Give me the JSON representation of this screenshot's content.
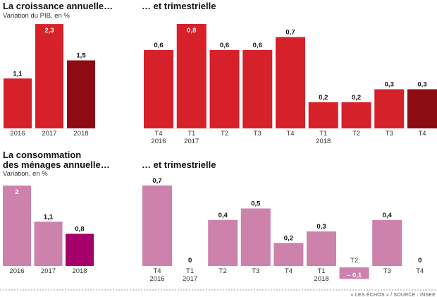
{
  "panels": {
    "gdp_annual": {
      "title": "La croissance annuelle…",
      "subtitle": "Variation du PIB, en %"
    },
    "gdp_quarterly": {
      "title": "… et trimestrielle"
    },
    "cons_annual": {
      "title_line1": "La consommation",
      "title_line2": "des ménages annuelle…",
      "subtitle": "Variation, en %"
    },
    "cons_quarterly": {
      "title": "… et trimestrielle"
    }
  },
  "source": "« LES ÉCHOS » / SOURCE : INSEE",
  "colors": {
    "gdp": "#d6202a",
    "gdp_highlight": "#8d0c14",
    "cons": "#cc82ab",
    "cons_highlight": "#a5006a",
    "rule": "#9a9a9a"
  },
  "chart_data": [
    {
      "id": "gdp_annual",
      "type": "bar",
      "categories": [
        "2016",
        "2017",
        "2018"
      ],
      "values": [
        1.1,
        2.3,
        1.5
      ],
      "labels": [
        "1,1",
        "2,3",
        "1,5"
      ],
      "highlight": [
        false,
        false,
        true
      ],
      "title": "La croissance annuelle…",
      "ylabel": "Variation du PIB, en %"
    },
    {
      "id": "gdp_quarterly",
      "type": "bar",
      "categories": [
        [
          "T4",
          "2016"
        ],
        [
          "T1",
          "2017"
        ],
        [
          "T2",
          ""
        ],
        [
          "T3",
          ""
        ],
        [
          "T4",
          ""
        ],
        [
          "T1",
          "2018"
        ],
        [
          "T2",
          ""
        ],
        [
          "T3",
          ""
        ],
        [
          "T4",
          ""
        ]
      ],
      "values": [
        0.6,
        0.8,
        0.6,
        0.6,
        0.7,
        0.2,
        0.2,
        0.3,
        0.3
      ],
      "labels": [
        "0,6",
        "0,8",
        "0,6",
        "0,6",
        "0,7",
        "0,2",
        "0,2",
        "0,3",
        "0,3"
      ],
      "highlight": [
        false,
        false,
        false,
        false,
        false,
        false,
        false,
        false,
        true
      ],
      "title": "… et trimestrielle"
    },
    {
      "id": "cons_annual",
      "type": "bar",
      "categories": [
        "2016",
        "2017",
        "2018"
      ],
      "values": [
        2,
        1.1,
        0.8
      ],
      "labels": [
        "2",
        "1,1",
        "0,8"
      ],
      "highlight": [
        false,
        false,
        true
      ],
      "title": "La consommation des ménages annuelle…",
      "ylabel": "Variation, en %"
    },
    {
      "id": "cons_quarterly",
      "type": "bar",
      "categories": [
        [
          "T4",
          "2016"
        ],
        [
          "T1",
          "2017"
        ],
        [
          "T2",
          ""
        ],
        [
          "T3",
          ""
        ],
        [
          "T4",
          ""
        ],
        [
          "T1",
          "2018"
        ],
        [
          "T2",
          ""
        ],
        [
          "T3",
          ""
        ],
        [
          "T4",
          ""
        ]
      ],
      "values": [
        0.7,
        0,
        0.4,
        0.5,
        0.2,
        0.3,
        -0.1,
        0.4,
        0
      ],
      "labels": [
        "0,7",
        "0",
        "0,4",
        "0,5",
        "0,2",
        "0,3",
        "– 0,1",
        "0,4",
        "0"
      ],
      "highlight": [
        false,
        false,
        false,
        false,
        false,
        false,
        false,
        false,
        false
      ],
      "title": "… et trimestrielle"
    }
  ]
}
